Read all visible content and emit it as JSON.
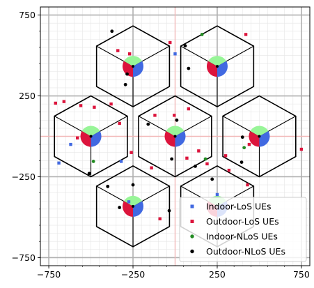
{
  "chart_data": {
    "type": "scatter",
    "title": "",
    "xlabel": "",
    "ylabel": "",
    "xlim": [
      -800,
      800
    ],
    "ylim": [
      -800,
      800
    ],
    "xticks": [
      -750,
      -250,
      250,
      750
    ],
    "yticks": [
      -750,
      -250,
      250,
      750
    ],
    "xtick_labels": [
      "−750",
      "−250",
      "250",
      "750"
    ],
    "ytick_labels": [
      "−750",
      "−250",
      "250",
      "750"
    ],
    "grid": true,
    "legend": "lower-right",
    "hexagons": {
      "radius": 250,
      "centers": [
        [
          -500,
          0
        ],
        [
          0,
          0
        ],
        [
          500,
          0
        ],
        [
          -250,
          433
        ],
        [
          250,
          433
        ],
        [
          -250,
          -433
        ],
        [
          250,
          -433
        ]
      ]
    },
    "base_station_orientations_deg": [
      90,
      210,
      330
    ],
    "series": [
      {
        "name": "Indoor-LoS UEs",
        "marker": "square",
        "color": "#4169e1",
        "points": [
          [
            0,
            510
          ],
          [
            -620,
            -50
          ],
          [
            -690,
            -165
          ],
          [
            -320,
            -155
          ],
          [
            -275,
            -405
          ],
          [
            250,
            -360
          ]
        ]
      },
      {
        "name": "Outdoor-LoS UEs",
        "marker": "square",
        "color": "#dc143c",
        "points": [
          [
            -340,
            530
          ],
          [
            -270,
            510
          ],
          [
            -30,
            580
          ],
          [
            420,
            630
          ],
          [
            -710,
            205
          ],
          [
            -660,
            215
          ],
          [
            -560,
            190
          ],
          [
            -480,
            180
          ],
          [
            -380,
            200
          ],
          [
            -120,
            130
          ],
          [
            -5,
            130
          ],
          [
            80,
            170
          ],
          [
            -580,
            -10
          ],
          [
            -330,
            80
          ],
          [
            -260,
            -100
          ],
          [
            -140,
            -195
          ],
          [
            140,
            -90
          ],
          [
            190,
            -170
          ],
          [
            300,
            -120
          ],
          [
            70,
            -135
          ],
          [
            440,
            -50
          ],
          [
            320,
            -210
          ],
          [
            430,
            -300
          ],
          [
            750,
            -80
          ],
          [
            -90,
            -510
          ]
        ]
      },
      {
        "name": "Indoor-NLoS UEs",
        "marker": "circle",
        "color": "#228b22",
        "points": [
          [
            160,
            630
          ],
          [
            -485,
            -155
          ],
          [
            180,
            -140
          ],
          [
            410,
            -70
          ]
        ]
      },
      {
        "name": "Outdoor-NLoS UEs",
        "marker": "circle",
        "color": "#000000",
        "points": [
          [
            -375,
            650
          ],
          [
            -295,
            320
          ],
          [
            -285,
            385
          ],
          [
            -510,
            -230
          ],
          [
            -400,
            -310
          ],
          [
            -250,
            -300
          ],
          [
            -160,
            75
          ],
          [
            -20,
            -140
          ],
          [
            10,
            100
          ],
          [
            120,
            -185
          ],
          [
            220,
            -265
          ],
          [
            -35,
            -460
          ],
          [
            60,
            560
          ],
          [
            80,
            420
          ],
          [
            400,
            -5
          ],
          [
            395,
            -160
          ],
          [
            -330,
            -440
          ]
        ]
      }
    ]
  }
}
